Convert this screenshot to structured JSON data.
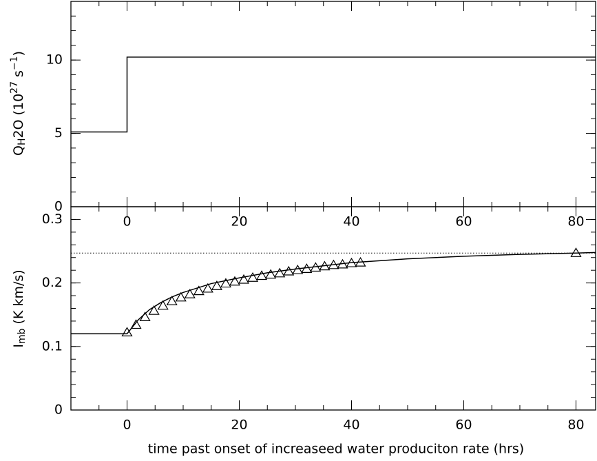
{
  "chart_data": [
    {
      "type": "line",
      "ylabel": [
        "Q",
        "H",
        "2O (10",
        "27",
        " s",
        "−1",
        ")"
      ],
      "xlim": [
        -10,
        83.5
      ],
      "ylim": [
        0,
        14
      ],
      "xticks": [
        0,
        20,
        40,
        60,
        80
      ],
      "yticks": [
        0,
        5,
        10
      ],
      "xminor": 5,
      "yminor": 1,
      "color": "#000000",
      "series": [
        {
          "x": [
            -10,
            0,
            0,
            83.5
          ],
          "values": [
            5.1,
            5.1,
            10.2,
            10.2
          ],
          "style": "solid"
        }
      ]
    },
    {
      "type": "line",
      "ylabel": [
        "I",
        "mb",
        " (K km/s)"
      ],
      "xlabel": "time past onset of increaseed water produciton rate (hrs)",
      "xlim": [
        -10,
        83.5
      ],
      "ylim": [
        0,
        0.32
      ],
      "xticks": [
        0,
        20,
        40,
        60,
        80
      ],
      "yticks": [
        0,
        0.1,
        0.2,
        0.3
      ],
      "xminor": 5,
      "yminor": 0.02,
      "color": "#000000",
      "hline": {
        "value": 0.247,
        "style": "dotted"
      },
      "series": [
        {
          "x": [
            0,
            1.6,
            3.2,
            4.8,
            6.4,
            8,
            9.6,
            11.2,
            12.8,
            14.4,
            16,
            17.6,
            19.2,
            20.8,
            22.4,
            24,
            25.6,
            27.2,
            28.8,
            30.4,
            32,
            33.6,
            35.2,
            36.8,
            38.4,
            40,
            41.6,
            80
          ],
          "values": [
            0.122,
            0.134,
            0.146,
            0.156,
            0.164,
            0.171,
            0.177,
            0.182,
            0.187,
            0.191,
            0.195,
            0.199,
            0.202,
            0.205,
            0.208,
            0.211,
            0.213,
            0.215,
            0.218,
            0.22,
            0.222,
            0.224,
            0.226,
            0.228,
            0.229,
            0.231,
            0.232,
            0.247
          ],
          "style": "triangle"
        },
        {
          "x": [
            -10,
            0,
            2,
            4,
            6,
            8,
            10,
            15,
            20,
            25,
            30,
            35,
            40,
            50,
            60,
            70,
            80,
            83.5
          ],
          "values": [
            0.12,
            0.12,
            0.142,
            0.158,
            0.169,
            0.178,
            0.185,
            0.199,
            0.208,
            0.216,
            0.222,
            0.227,
            0.232,
            0.238,
            0.242,
            0.245,
            0.247,
            0.248
          ],
          "style": "solid"
        }
      ]
    }
  ]
}
